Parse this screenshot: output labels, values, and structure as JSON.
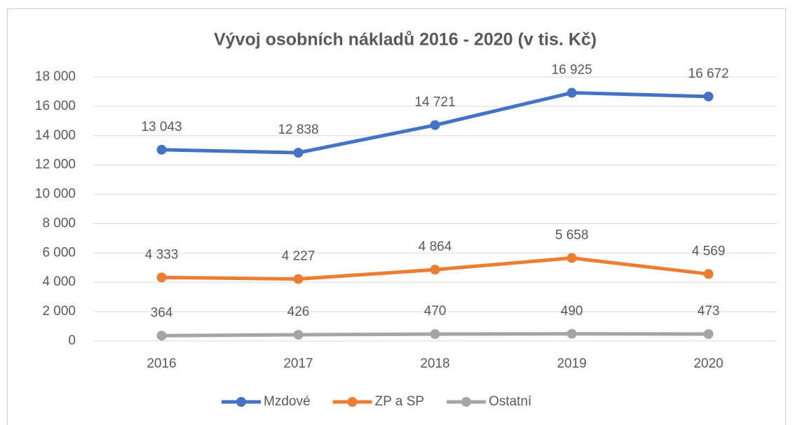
{
  "chart_data": {
    "type": "line",
    "title": "Vývoj osobních nákladů 2016 - 2020 (v tis. Kč)",
    "categories": [
      "2016",
      "2017",
      "2018",
      "2019",
      "2020"
    ],
    "series": [
      {
        "name": "Mzdové",
        "color": "#4472c4",
        "values": [
          13043,
          12838,
          14721,
          16925,
          16672
        ],
        "value_labels": [
          "13 043",
          "12 838",
          "14 721",
          "16 925",
          "16 672"
        ]
      },
      {
        "name": "ZP a SP",
        "color": "#ed7d31",
        "values": [
          4333,
          4227,
          4864,
          5658,
          4569
        ],
        "value_labels": [
          "4 333",
          "4 227",
          "4 864",
          "5 658",
          "4 569"
        ]
      },
      {
        "name": "Ostatní",
        "color": "#a5a5a5",
        "values": [
          364,
          426,
          470,
          490,
          473
        ]
      }
    ],
    "ylim": [
      0,
      18000
    ],
    "yticks": [
      0,
      {
        "value": 2000,
        "label": "2 000"
      },
      {
        "value": 4000,
        "label": "4 000"
      },
      {
        "value": 6000,
        "label": "6 000"
      },
      {
        "value": 8000,
        "label": "8 000"
      },
      {
        "value": 10000,
        "label": "10 000"
      },
      {
        "value": 12000,
        "label": "12 000"
      },
      {
        "value": 14000,
        "label": "14 000"
      },
      {
        "value": 16000,
        "label": "16 000"
      },
      {
        "value": 18000,
        "label": "18 000"
      }
    ],
    "grid": true,
    "legend": "bottom"
  }
}
